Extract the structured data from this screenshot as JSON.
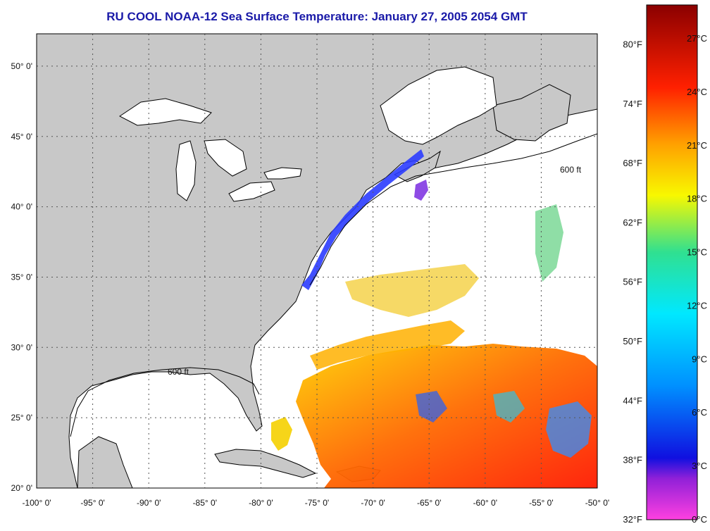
{
  "title": "RU COOL  NOAA-12  Sea Surface Temperature:  January 27, 2005 2054 GMT",
  "map": {
    "lon_range": [
      -100,
      -50
    ],
    "lat_range": [
      20,
      52.3
    ],
    "lon_ticks": [
      -100,
      -95,
      -90,
      -85,
      -80,
      -75,
      -70,
      -65,
      -60,
      -55,
      -50
    ],
    "lon_tick_labels": [
      "-100° 0'",
      "-95° 0'",
      "-90° 0'",
      "-85° 0'",
      "-80° 0'",
      "-75° 0'",
      "-70° 0'",
      "-65° 0'",
      "-60° 0'",
      "-55° 0'",
      "-50° 0'"
    ],
    "lat_ticks": [
      20,
      25,
      30,
      35,
      40,
      45,
      50
    ],
    "lat_tick_labels": [
      "20° 0'",
      "25° 0'",
      "30° 0'",
      "35° 0'",
      "40° 0'",
      "45° 0'",
      "50° 0'"
    ],
    "grid": true,
    "land_color": "#c8c8c8",
    "water_color": "#ffffff",
    "contour_label": "600 ft"
  },
  "colorbar": {
    "range_celsius": [
      0,
      28.9
    ],
    "celsius_labels": [
      "0°C",
      "3°C",
      "6°C",
      "9°C",
      "12°C",
      "15°C",
      "18°C",
      "21°C",
      "24°C",
      "27°C"
    ],
    "celsius_values": [
      0,
      3,
      6,
      9,
      12,
      15,
      18,
      21,
      24,
      27
    ],
    "fahrenheit_labels": [
      "32°F",
      "38°F",
      "44°F",
      "50°F",
      "56°F",
      "62°F",
      "68°F",
      "74°F",
      "80°F"
    ],
    "fahrenheit_values": [
      32,
      38,
      44,
      50,
      56,
      62,
      68,
      74,
      80
    ],
    "colors": [
      "#ff40e0",
      "#7a10d8",
      "#0000ff",
      "#0090ff",
      "#00e8ff",
      "#30e090",
      "#f8f800",
      "#ffa000",
      "#ff2000",
      "#8a0000"
    ]
  }
}
